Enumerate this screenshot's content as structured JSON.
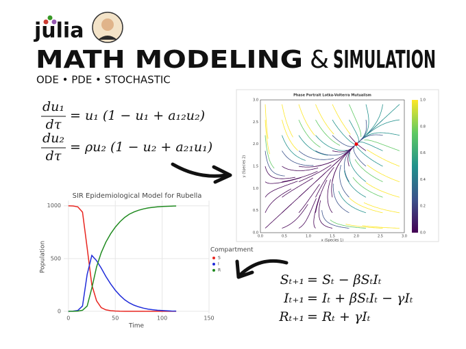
{
  "logo": "julia",
  "title_left": "MATH MODELING",
  "ampersand": "&",
  "title_right": "SIMULATION",
  "subtitle": "ODE • PDE • STOCHASTIC",
  "equations_ode": [
    {
      "numerator": "du₁",
      "denominator": "dτ",
      "rhs": "= u₁ (1 − u₁ + a₁₂u₂)"
    },
    {
      "numerator": "du₂",
      "denominator": "dτ",
      "rhs": "= ρu₂ (1 − u₂ + a₂₁u₁)"
    }
  ],
  "equations_discrete": [
    {
      "lhs": "Sₜ₊₁",
      "rhs": "= Sₜ − βSₜIₜ"
    },
    {
      "lhs": "Iₜ₊₁",
      "rhs": "= Iₜ + βSₜIₜ − γIₜ"
    },
    {
      "lhs": "Rₜ₊₁",
      "rhs": "= Rₜ + γIₜ"
    }
  ],
  "phase_portrait": {
    "title": "Phase Portrait Lotka-Volterra Mutualism",
    "xlabel": "x (Species 1)",
    "ylabel": "y (Species 2)",
    "xticks": [
      "0.0",
      "0.5",
      "1.0",
      "1.5",
      "2.0",
      "2.5",
      "3.0"
    ],
    "yticks": [
      "0.0",
      "0.5",
      "1.0",
      "1.5",
      "2.0",
      "2.5",
      "3.0"
    ],
    "colorbar_ticks": [
      "0.0",
      "0.2",
      "0.4",
      "0.6",
      "0.8",
      "1.0"
    ]
  },
  "chart_data": {
    "type": "line",
    "title": "SIR Epidemiological Model for Rubella",
    "xlabel": "Time",
    "ylabel": "Population",
    "legend_title": "Compartment",
    "x": [
      0,
      5,
      10,
      15,
      20,
      25,
      30,
      35,
      40,
      45,
      50,
      55,
      60,
      65,
      70,
      75,
      80,
      85,
      90,
      95,
      100,
      105,
      110,
      115
    ],
    "series": [
      {
        "name": "S",
        "color": "#e8251f",
        "values": [
          1000,
          998,
          990,
          940,
          600,
          250,
          100,
          35,
          14,
          6,
          3,
          1,
          0,
          0,
          0,
          0,
          0,
          0,
          0,
          0,
          0,
          0,
          0,
          0
        ]
      },
      {
        "name": "I",
        "color": "#1f2bd9",
        "values": [
          0,
          2,
          8,
          50,
          350,
          530,
          480,
          410,
          330,
          260,
          200,
          150,
          110,
          80,
          58,
          42,
          30,
          21,
          15,
          10,
          7,
          5,
          3,
          2
        ]
      },
      {
        "name": "R",
        "color": "#1f8a1f",
        "values": [
          0,
          0,
          2,
          10,
          50,
          220,
          420,
          555,
          656,
          734,
          797,
          849,
          890,
          920,
          942,
          958,
          970,
          979,
          985,
          990,
          993,
          995,
          997,
          998
        ]
      }
    ],
    "xlim": [
      -5,
      150
    ],
    "ylim": [
      -20,
      1050
    ],
    "xticks": [
      0,
      50,
      100,
      150
    ],
    "yticks": [
      0,
      500,
      1000
    ],
    "grid": true
  }
}
